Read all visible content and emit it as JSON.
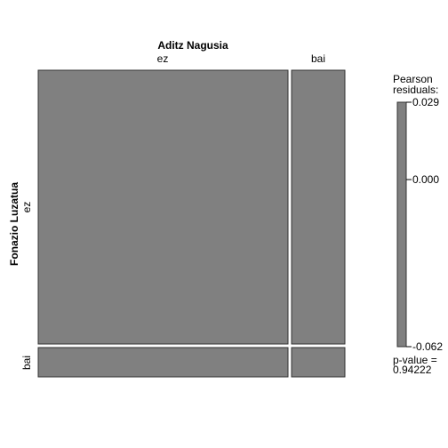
{
  "chart_data": {
    "type": "mosaic",
    "title": "",
    "col_variable": "Aditz Nagusia",
    "row_variable": "Fonazio Luzatua",
    "col_levels": [
      "ez",
      "bai"
    ],
    "row_levels": [
      "ez",
      "bai"
    ],
    "col_proportions": [
      0.85,
      0.15
    ],
    "row_proportions_by_col": [
      [
        0.91,
        0.09
      ],
      [
        0.91,
        0.09
      ]
    ],
    "cells": [
      {
        "row": "ez",
        "col": "ez",
        "residual": 0.0
      },
      {
        "row": "bai",
        "col": "ez",
        "residual": 0.0
      },
      {
        "row": "ez",
        "col": "bai",
        "residual": 0.0
      },
      {
        "row": "bai",
        "col": "bai",
        "residual": 0.0
      }
    ],
    "legend": {
      "title_line1": "Pearson",
      "title_line2": "residuals:",
      "max_label": "0.029",
      "mid_label": "0.000",
      "min_label": "-0.062",
      "max": 0.029,
      "min": -0.062,
      "pvalue_line1": "p-value =",
      "pvalue_line2": "0.94222"
    },
    "colors": {
      "cell_fill": "#808080",
      "cell_border": "#333333",
      "legend_fill": "#808080"
    }
  }
}
